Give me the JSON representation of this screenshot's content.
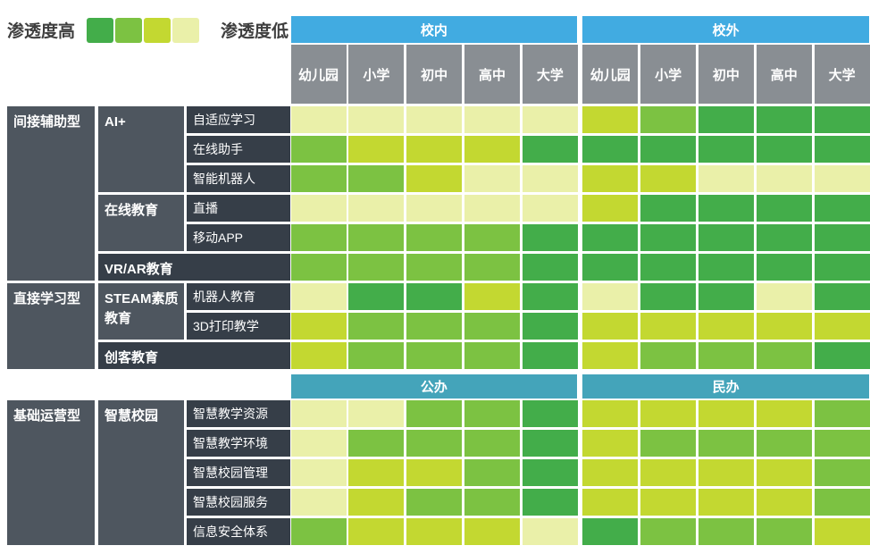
{
  "legend": {
    "high_label": "渗透度高",
    "low_label": "渗透度低"
  },
  "palette": {
    "levels": [
      "#43ad4a",
      "#7cc242",
      "#c3d831",
      "#eaf0a9"
    ],
    "level_meaning": "1=darkest green (highest penetration) ... 4=pale yellow (lowest penetration)"
  },
  "colors": {
    "top_band": "#41abe1",
    "mid_band": "#44a4ba",
    "header_bg": "#898e93",
    "label_container_bg": "#4e565f",
    "label_item_bg": "#363e48"
  },
  "chart_data": {
    "type": "heatmap",
    "scale_note": "values 1-4; 1 = 渗透度高 (dark green), 4 = 渗透度低 (pale yellow-green)",
    "top_groups": [
      {
        "label": "校内",
        "span": 5
      },
      {
        "label": "校外",
        "span": 5
      }
    ],
    "mid_groups": [
      {
        "label": "公办",
        "span": 5
      },
      {
        "label": "民办",
        "span": 5
      }
    ],
    "columns": [
      "幼儿园",
      "小学",
      "初中",
      "高中",
      "大学",
      "幼儿园",
      "小学",
      "初中",
      "高中",
      "大学"
    ],
    "sections": [
      {
        "category": "间接辅助型",
        "groups": [
          {
            "label": "AI+",
            "merged": false,
            "items": [
              {
                "label": "自适应学习",
                "values": [
                  4,
                  4,
                  4,
                  4,
                  4,
                  3,
                  2,
                  1,
                  1,
                  1
                ]
              },
              {
                "label": "在线助手",
                "values": [
                  2,
                  3,
                  3,
                  3,
                  1,
                  1,
                  1,
                  1,
                  1,
                  1
                ]
              },
              {
                "label": "智能机器人",
                "values": [
                  2,
                  2,
                  3,
                  4,
                  4,
                  3,
                  3,
                  4,
                  4,
                  4
                ]
              }
            ]
          },
          {
            "label": "在线教育",
            "merged": false,
            "items": [
              {
                "label": "直播",
                "values": [
                  4,
                  4,
                  4,
                  4,
                  4,
                  3,
                  1,
                  1,
                  1,
                  1
                ]
              },
              {
                "label": "移动APP",
                "values": [
                  2,
                  2,
                  2,
                  2,
                  1,
                  1,
                  1,
                  1,
                  1,
                  1
                ]
              }
            ]
          },
          {
            "label": "VR/AR教育",
            "merged": true,
            "items": [
              {
                "label": "",
                "values": [
                  2,
                  2,
                  2,
                  2,
                  1,
                  1,
                  1,
                  1,
                  1,
                  1
                ]
              }
            ]
          }
        ]
      },
      {
        "category": "直接学习型",
        "groups": [
          {
            "label": "STEAM素质教育",
            "merged": false,
            "items": [
              {
                "label": "机器人教育",
                "values": [
                  4,
                  1,
                  1,
                  3,
                  1,
                  4,
                  1,
                  1,
                  4,
                  1
                ]
              },
              {
                "label": "3D打印教学",
                "values": [
                  3,
                  2,
                  2,
                  2,
                  1,
                  3,
                  3,
                  3,
                  3,
                  3
                ]
              }
            ]
          },
          {
            "label": "创客教育",
            "merged": true,
            "items": [
              {
                "label": "",
                "values": [
                  3,
                  2,
                  2,
                  2,
                  1,
                  3,
                  2,
                  2,
                  2,
                  1
                ]
              }
            ]
          }
        ]
      },
      {
        "category": "基础运营型",
        "after_mid_band": true,
        "groups": [
          {
            "label": "智慧校园",
            "merged": false,
            "items": [
              {
                "label": "智慧教学资源",
                "values": [
                  4,
                  4,
                  2,
                  2,
                  1,
                  3,
                  3,
                  3,
                  3,
                  2
                ]
              },
              {
                "label": "智慧教学环境",
                "values": [
                  4,
                  2,
                  2,
                  2,
                  1,
                  3,
                  2,
                  2,
                  2,
                  2
                ]
              },
              {
                "label": "智慧校园管理",
                "values": [
                  4,
                  3,
                  3,
                  2,
                  1,
                  3,
                  3,
                  3,
                  3,
                  2
                ]
              },
              {
                "label": "智慧校园服务",
                "values": [
                  4,
                  3,
                  2,
                  2,
                  1,
                  3,
                  3,
                  3,
                  3,
                  2
                ]
              },
              {
                "label": "信息安全体系",
                "values": [
                  2,
                  3,
                  3,
                  3,
                  4,
                  1,
                  2,
                  2,
                  2,
                  3
                ]
              }
            ]
          }
        ]
      }
    ]
  }
}
